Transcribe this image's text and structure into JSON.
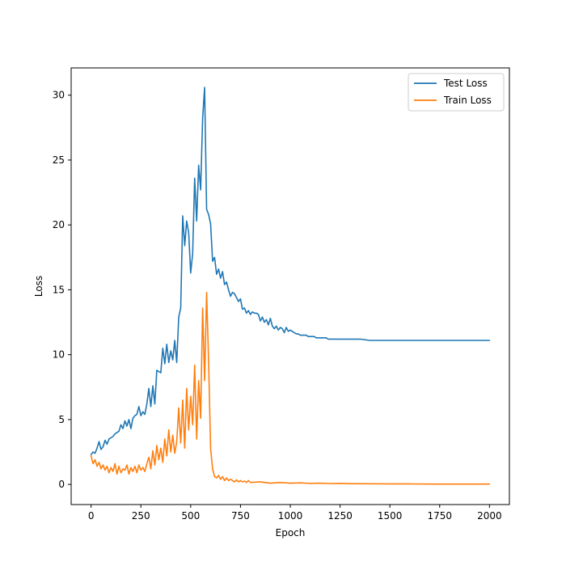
{
  "chart_data": {
    "type": "line",
    "title": "",
    "xlabel": "Epoch",
    "ylabel": "Loss",
    "xlim": [
      -100,
      2100
    ],
    "ylim": [
      -1.55,
      32.1
    ],
    "xticks": [
      0,
      250,
      500,
      750,
      1000,
      1250,
      1500,
      1750,
      2000
    ],
    "yticks": [
      0,
      5,
      10,
      15,
      20,
      25,
      30
    ],
    "grid": false,
    "legend_position": "top-right",
    "series": [
      {
        "name": "Test Loss",
        "color": "#1f77b4",
        "x": [
          0,
          10,
          20,
          30,
          40,
          50,
          60,
          70,
          80,
          90,
          100,
          110,
          120,
          130,
          140,
          150,
          160,
          170,
          180,
          190,
          200,
          210,
          220,
          230,
          240,
          250,
          260,
          270,
          280,
          290,
          300,
          310,
          320,
          330,
          340,
          350,
          360,
          370,
          380,
          390,
          400,
          410,
          420,
          430,
          440,
          450,
          460,
          470,
          480,
          490,
          500,
          510,
          520,
          530,
          540,
          550,
          560,
          570,
          580,
          590,
          600,
          610,
          620,
          630,
          640,
          650,
          660,
          670,
          680,
          690,
          700,
          710,
          720,
          730,
          740,
          750,
          760,
          770,
          780,
          790,
          800,
          810,
          820,
          830,
          840,
          850,
          860,
          870,
          880,
          890,
          900,
          910,
          920,
          930,
          940,
          950,
          960,
          970,
          980,
          990,
          1000,
          1010,
          1020,
          1030,
          1040,
          1050,
          1060,
          1070,
          1080,
          1090,
          1100,
          1110,
          1120,
          1130,
          1140,
          1150,
          1160,
          1170,
          1180,
          1190,
          1200,
          1210,
          1220,
          1230,
          1240,
          1250,
          1300,
          1350,
          1400,
          1450,
          1500,
          1550,
          1600,
          1650,
          1700,
          1750,
          1800,
          1850,
          1900,
          1950,
          2000
        ],
        "y": [
          2.3,
          2.5,
          2.4,
          2.8,
          3.3,
          2.7,
          2.9,
          3.4,
          3.1,
          3.5,
          3.6,
          3.7,
          3.9,
          4.0,
          4.1,
          4.6,
          4.3,
          4.9,
          4.5,
          5.0,
          4.3,
          5.1,
          5.3,
          5.4,
          6.0,
          5.3,
          5.6,
          5.4,
          6.2,
          7.4,
          6.0,
          7.6,
          6.2,
          8.8,
          8.7,
          8.6,
          10.5,
          9.3,
          10.8,
          9.4,
          10.3,
          9.6,
          11.1,
          9.4,
          12.9,
          13.6,
          20.7,
          18.4,
          20.3,
          19.4,
          16.3,
          17.8,
          23.6,
          20.3,
          24.6,
          22.7,
          28.2,
          30.6,
          21.2,
          20.8,
          20.1,
          17.2,
          17.5,
          16.2,
          16.6,
          15.9,
          16.4,
          15.4,
          15.6,
          15.0,
          14.5,
          14.8,
          14.7,
          14.4,
          14.1,
          14.3,
          13.5,
          13.6,
          13.2,
          13.4,
          13.1,
          13.3,
          13.2,
          13.2,
          13.1,
          12.6,
          12.9,
          12.5,
          12.7,
          12.3,
          12.8,
          12.2,
          12.0,
          12.2,
          11.9,
          12.1,
          12.0,
          11.7,
          12.1,
          11.8,
          11.9,
          11.8,
          11.7,
          11.6,
          11.6,
          11.5,
          11.5,
          11.5,
          11.5,
          11.4,
          11.4,
          11.4,
          11.4,
          11.3,
          11.3,
          11.3,
          11.3,
          11.3,
          11.3,
          11.2,
          11.2,
          11.2,
          11.2,
          11.2,
          11.2,
          11.2,
          11.2,
          11.2,
          11.1,
          11.1,
          11.1,
          11.1,
          11.1,
          11.1,
          11.1,
          11.1,
          11.1,
          11.1,
          11.1,
          11.1,
          11.1
        ]
      },
      {
        "name": "Train Loss",
        "color": "#ff7f0e",
        "x": [
          0,
          10,
          20,
          30,
          40,
          50,
          60,
          70,
          80,
          90,
          100,
          110,
          120,
          130,
          140,
          150,
          160,
          170,
          180,
          190,
          200,
          210,
          220,
          230,
          240,
          250,
          260,
          270,
          280,
          290,
          300,
          310,
          320,
          330,
          340,
          350,
          360,
          370,
          380,
          390,
          400,
          410,
          420,
          430,
          440,
          450,
          460,
          470,
          480,
          490,
          500,
          510,
          520,
          530,
          540,
          550,
          560,
          570,
          580,
          590,
          600,
          610,
          620,
          630,
          640,
          650,
          660,
          670,
          680,
          690,
          700,
          710,
          720,
          730,
          740,
          750,
          760,
          770,
          780,
          790,
          800,
          850,
          900,
          950,
          1000,
          1050,
          1100,
          1150,
          1200,
          1250,
          1300,
          1400,
          1500,
          1600,
          1700,
          1800,
          1900,
          2000
        ],
        "y": [
          2.2,
          1.6,
          1.9,
          1.4,
          1.7,
          1.2,
          1.5,
          1.1,
          1.4,
          0.9,
          1.3,
          1.0,
          1.6,
          0.8,
          1.4,
          0.9,
          1.2,
          1.1,
          1.5,
          0.8,
          1.3,
          1.0,
          1.4,
          0.9,
          1.5,
          1.1,
          1.3,
          1.0,
          1.6,
          2.1,
          1.2,
          2.6,
          1.5,
          3.0,
          1.9,
          2.8,
          1.7,
          3.5,
          2.2,
          4.2,
          2.5,
          3.8,
          2.4,
          3.3,
          5.9,
          3.2,
          6.5,
          2.8,
          7.4,
          4.2,
          6.8,
          4.6,
          9.2,
          3.5,
          8.0,
          5.1,
          13.6,
          8.0,
          14.8,
          9.5,
          2.8,
          1.2,
          0.6,
          0.5,
          0.7,
          0.4,
          0.6,
          0.3,
          0.5,
          0.3,
          0.4,
          0.3,
          0.2,
          0.35,
          0.2,
          0.3,
          0.2,
          0.25,
          0.15,
          0.3,
          0.15,
          0.2,
          0.1,
          0.15,
          0.1,
          0.12,
          0.08,
          0.1,
          0.07,
          0.08,
          0.06,
          0.05,
          0.04,
          0.04,
          0.03,
          0.03,
          0.03,
          0.03
        ]
      }
    ]
  }
}
